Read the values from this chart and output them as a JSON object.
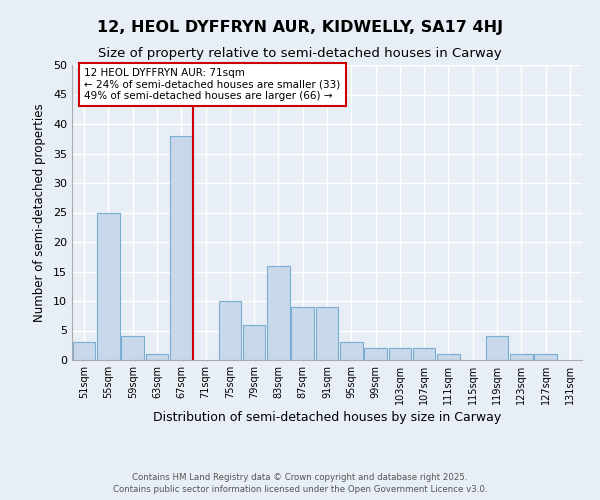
{
  "title": "12, HEOL DYFFRYN AUR, KIDWELLY, SA17 4HJ",
  "subtitle": "Size of property relative to semi-detached houses in Carway",
  "xlabel": "Distribution of semi-detached houses by size in Carway",
  "ylabel": "Number of semi-detached properties",
  "bin_starts": [
    51,
    55,
    59,
    63,
    67,
    71,
    75,
    79,
    83,
    87,
    91,
    95,
    99,
    103,
    107,
    111,
    115,
    119,
    123,
    127,
    131
  ],
  "bin_width": 4,
  "values": [
    3,
    25,
    4,
    1,
    38,
    0,
    10,
    6,
    16,
    9,
    9,
    3,
    2,
    2,
    2,
    1,
    0,
    4,
    1,
    1
  ],
  "bar_color": "#c8d8ea",
  "bar_edge_color": "#7aaed0",
  "vline_x": 71,
  "vline_color": "#cc0000",
  "annotation_title": "12 HEOL DYFFRYN AUR: 71sqm",
  "annotation_line1": "← 24% of semi-detached houses are smaller (33)",
  "annotation_line2": "49% of semi-detached houses are larger (66) →",
  "annotation_box_color": "#ffffff",
  "annotation_box_edge": "#cc0000",
  "ylim": [
    0,
    50
  ],
  "yticks": [
    0,
    5,
    10,
    15,
    20,
    25,
    30,
    35,
    40,
    45,
    50
  ],
  "background_color": "#e8eef5",
  "grid_color": "#ffffff",
  "footer_line1": "Contains HM Land Registry data © Crown copyright and database right 2025.",
  "footer_line2": "Contains public sector information licensed under the Open Government Licence v3.0.",
  "title_fontsize": 11.5,
  "subtitle_fontsize": 9.5,
  "xlabel_fontsize": 9,
  "ylabel_fontsize": 8.5
}
